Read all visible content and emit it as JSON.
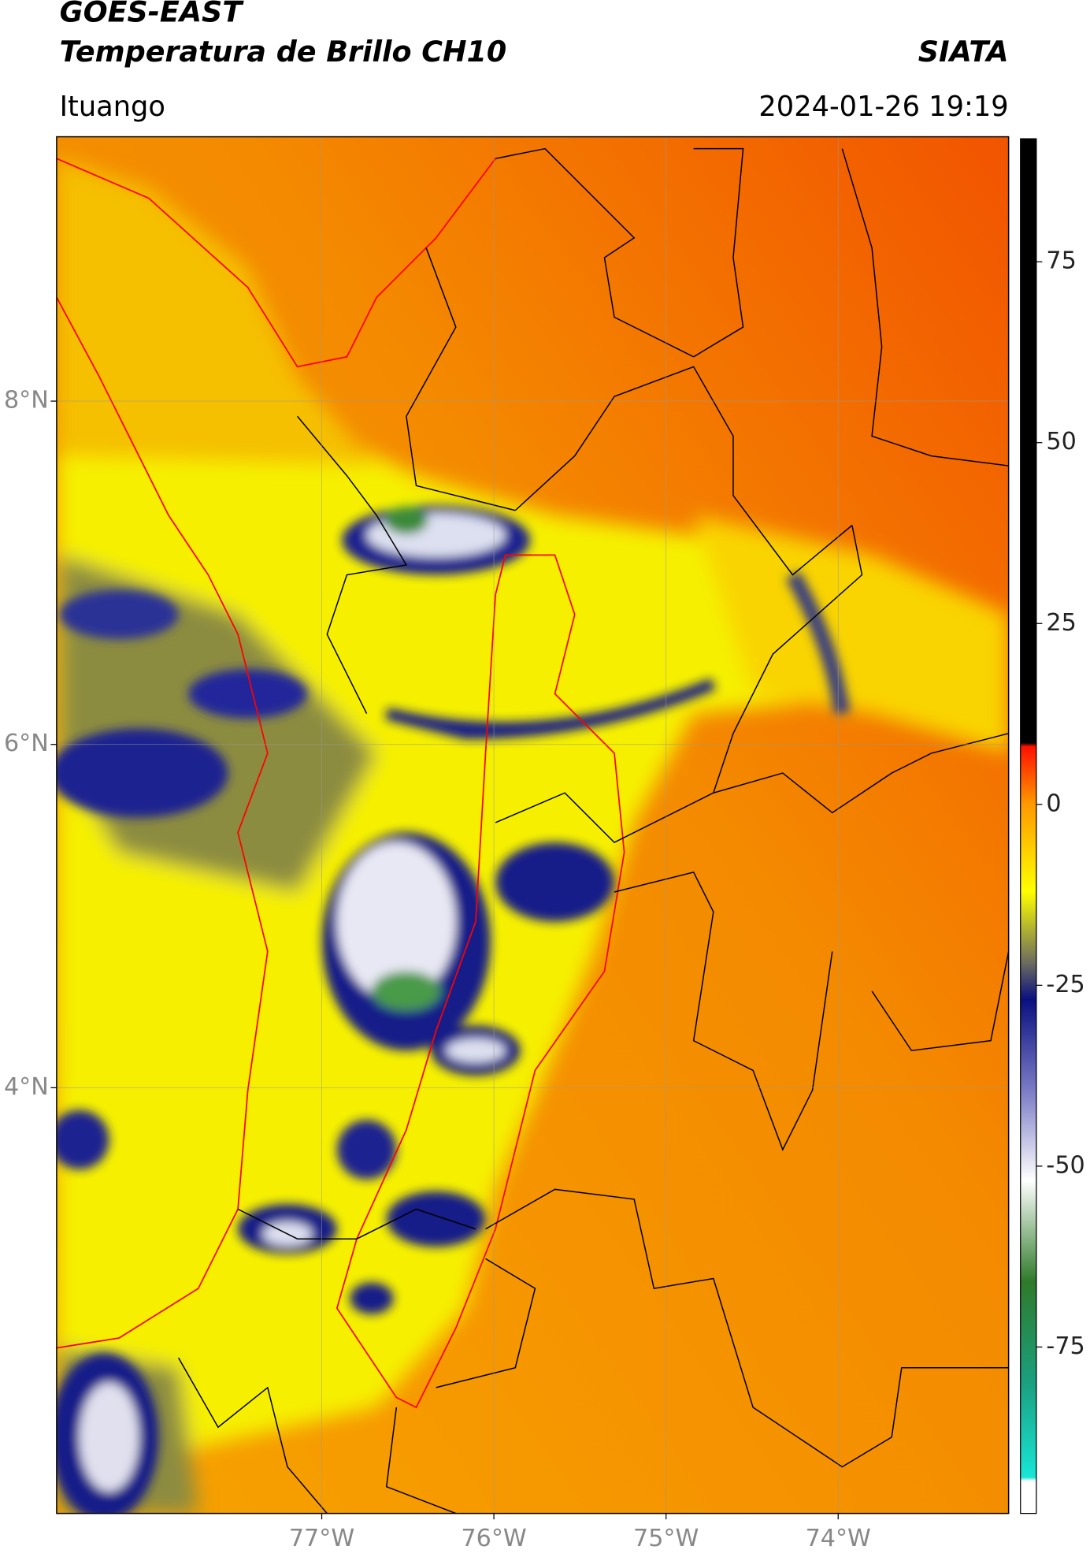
{
  "header": {
    "title": "GOES-EAST",
    "subtitle": "Temperatura de Brillo CH10",
    "source": "SIATA",
    "location": "Ituango",
    "datetime": "2024-01-26 19:19"
  },
  "map": {
    "xlim": [
      -78.54,
      -73.01
    ],
    "ylim": [
      1.52,
      9.54
    ],
    "xticks": [
      {
        "value": -77,
        "label": "77°W"
      },
      {
        "value": -76,
        "label": "76°W"
      },
      {
        "value": -75,
        "label": "75°W"
      },
      {
        "value": -74,
        "label": "74°W"
      }
    ],
    "yticks": [
      {
        "value": 4,
        "label": "4°N"
      },
      {
        "value": 6,
        "label": "6°N"
      },
      {
        "value": 8,
        "label": "8°N"
      }
    ],
    "grid": true
  },
  "colorbar": {
    "lim": [
      -98,
      92
    ],
    "ticks": [
      -75,
      -50,
      -25,
      0,
      25,
      50,
      75
    ],
    "colormap": [
      {
        "value": -98,
        "color": "#ffffff"
      },
      {
        "value": -93.5,
        "color": "#ffffff"
      },
      {
        "value": -93,
        "color": "#19e6d6"
      },
      {
        "value": -80,
        "color": "#1aa080"
      },
      {
        "value": -66,
        "color": "#2f7a2a"
      },
      {
        "value": -52,
        "color": "#ffffff"
      },
      {
        "value": -40,
        "color": "#7f80c8"
      },
      {
        "value": -27,
        "color": "#0a1080"
      },
      {
        "value": -22,
        "color": "#6a6a60"
      },
      {
        "value": -12,
        "color": "#ffff00"
      },
      {
        "value": 0,
        "color": "#ff9a00"
      },
      {
        "value": 8,
        "color": "#ff1000"
      },
      {
        "value": 8.5,
        "color": "#000000"
      },
      {
        "value": 92,
        "color": "#000000"
      }
    ]
  }
}
